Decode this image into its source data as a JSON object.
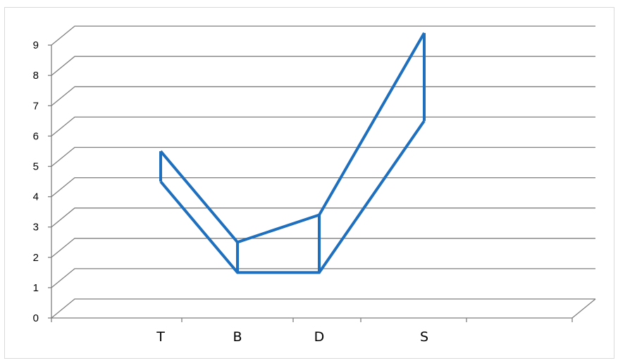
{
  "chart_data": {
    "type": "line",
    "title": "",
    "xlabel": "",
    "ylabel": "",
    "categories": [
      "T",
      "B",
      "D",
      "S"
    ],
    "series": [
      {
        "values": [
          5.5,
          2.5,
          3.4,
          9.4
        ]
      },
      {
        "values": [
          4.5,
          1.5,
          1.5,
          6.5
        ]
      }
    ],
    "ylim": [
      0,
      9
    ],
    "yticks": [
      "0",
      "1",
      "2",
      "3",
      "4",
      "5",
      "6",
      "7",
      "8",
      "9"
    ],
    "grid": true,
    "three_d_floor": true,
    "legend": "none",
    "colors": {
      "series": "#1f6fbf",
      "grid": "#7f7f7f",
      "axis": "#7f7f7f"
    }
  }
}
